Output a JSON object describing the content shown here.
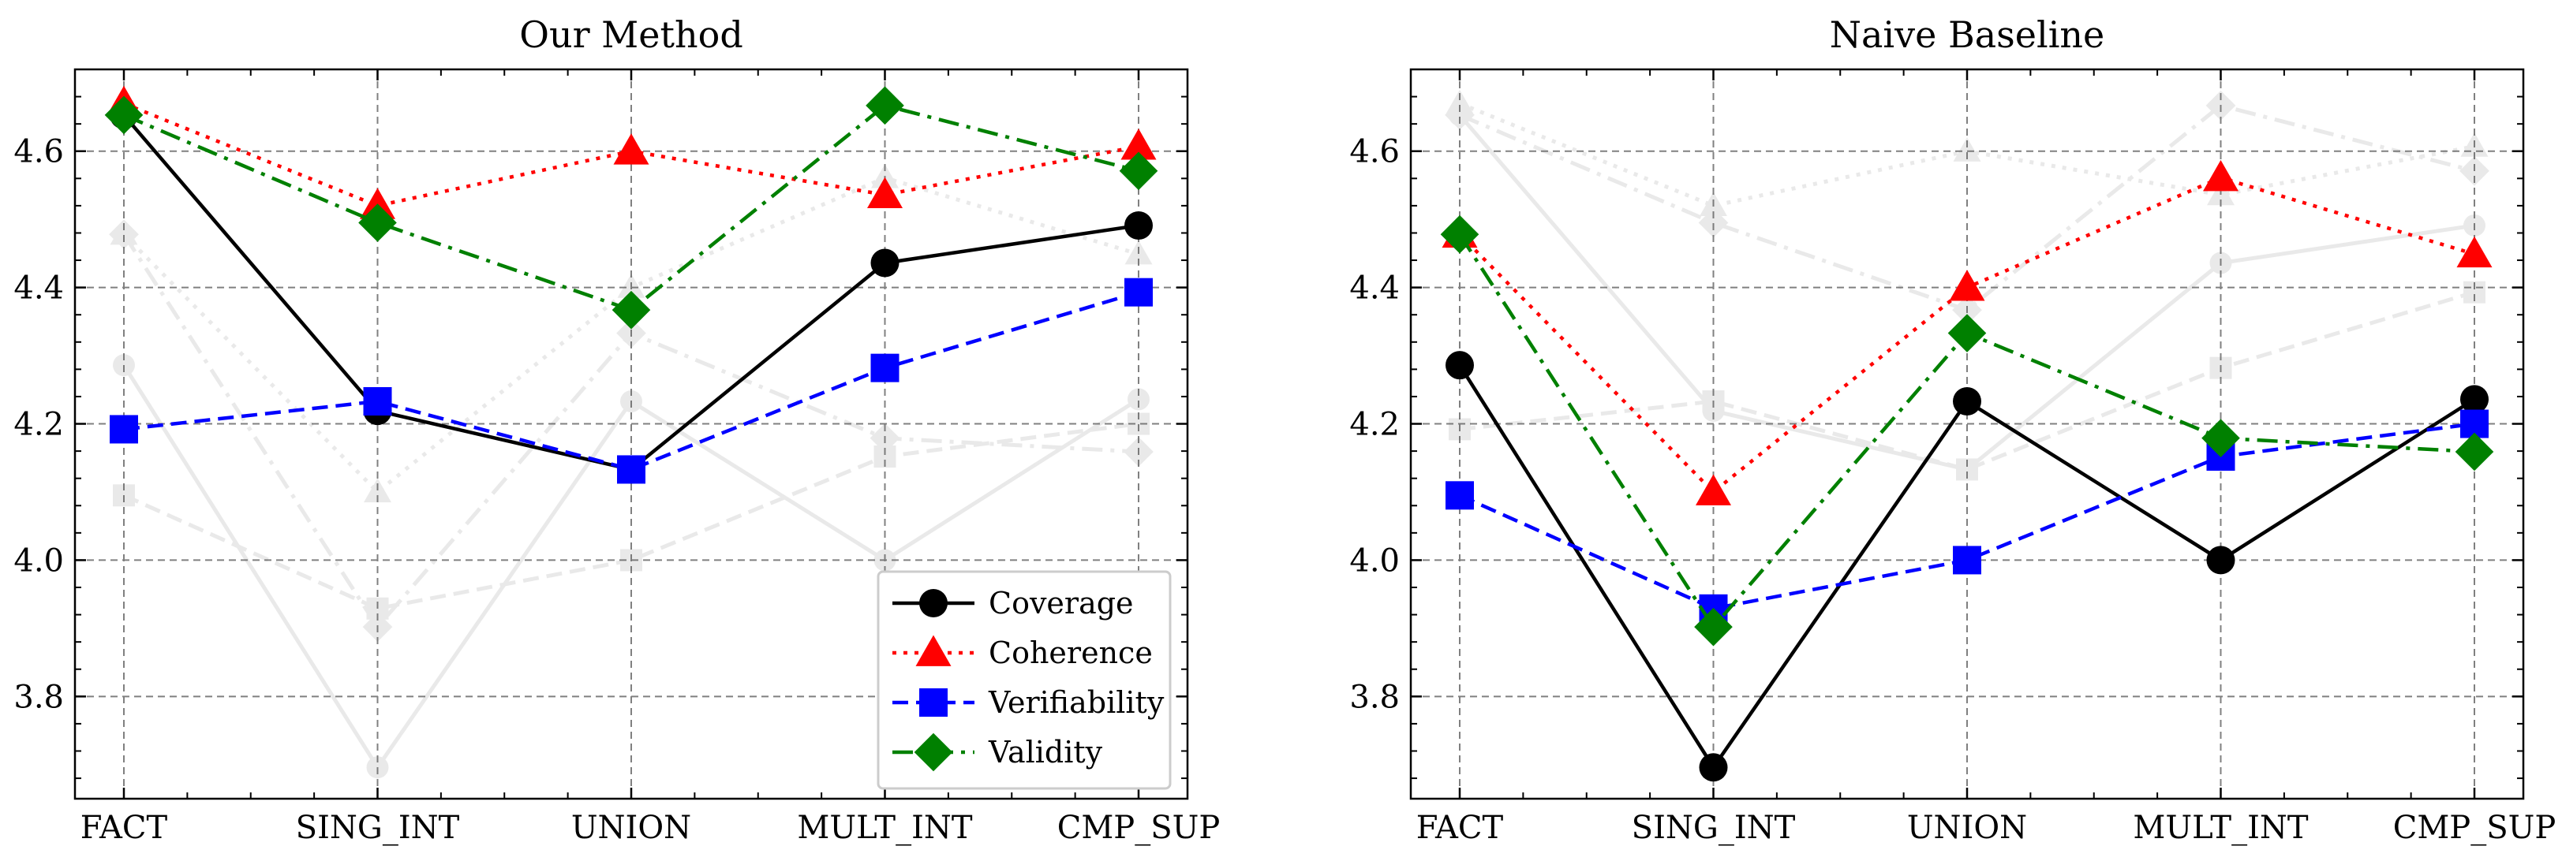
{
  "chart_data": [
    {
      "type": "line",
      "title": "Our Method",
      "categories": [
        "FACT",
        "SING_INT",
        "UNION",
        "MULT_INT",
        "CMP_SUP"
      ],
      "ylim": [
        3.65,
        4.72
      ],
      "yticks": [
        3.8,
        4.0,
        4.2,
        4.4,
        4.6
      ],
      "grid": true,
      "legend": {
        "location": "bottom-right",
        "entries": [
          "Coverage",
          "Coherence",
          "Verifiability",
          "Validity"
        ]
      },
      "series": [
        {
          "name": "Coverage",
          "color": "#000000",
          "marker": "circle",
          "linestyle": "solid",
          "values": [
            4.653,
            4.219,
            4.133,
            4.436,
            4.491
          ]
        },
        {
          "name": "Coherence",
          "color": "#ff0000",
          "marker": "triangle",
          "linestyle": "dotted",
          "values": [
            4.67,
            4.52,
            4.6,
            4.536,
            4.607
          ]
        },
        {
          "name": "Verifiability",
          "color": "#0000ff",
          "marker": "square",
          "linestyle": "dashed",
          "values": [
            4.192,
            4.233,
            4.133,
            4.282,
            4.393
          ]
        },
        {
          "name": "Validity",
          "color": "#008000",
          "marker": "diamond",
          "linestyle": "dashdot",
          "values": [
            4.653,
            4.495,
            4.367,
            4.667,
            4.571
          ]
        }
      ]
    },
    {
      "type": "line",
      "title": "Naive Baseline",
      "categories": [
        "FACT",
        "SING_INT",
        "UNION",
        "MULT_INT",
        "CMP_SUP"
      ],
      "ylim": [
        3.65,
        4.72
      ],
      "yticks": [
        3.8,
        4.0,
        4.2,
        4.4,
        4.6
      ],
      "grid": true,
      "series": [
        {
          "name": "Coverage",
          "color": "#000000",
          "marker": "circle",
          "linestyle": "solid",
          "values": [
            4.286,
            3.696,
            4.233,
            4.0,
            4.236
          ]
        },
        {
          "name": "Coherence",
          "color": "#ff0000",
          "marker": "triangle",
          "linestyle": "dotted",
          "values": [
            4.478,
            4.1,
            4.4,
            4.561,
            4.449
          ]
        },
        {
          "name": "Verifiability",
          "color": "#0000ff",
          "marker": "square",
          "linestyle": "dashed",
          "values": [
            4.095,
            3.929,
            4.0,
            4.152,
            4.2
          ]
        },
        {
          "name": "Validity",
          "color": "#008000",
          "marker": "diamond",
          "linestyle": "dashdot",
          "values": [
            4.478,
            3.902,
            4.333,
            4.179,
            4.159
          ]
        }
      ]
    }
  ]
}
